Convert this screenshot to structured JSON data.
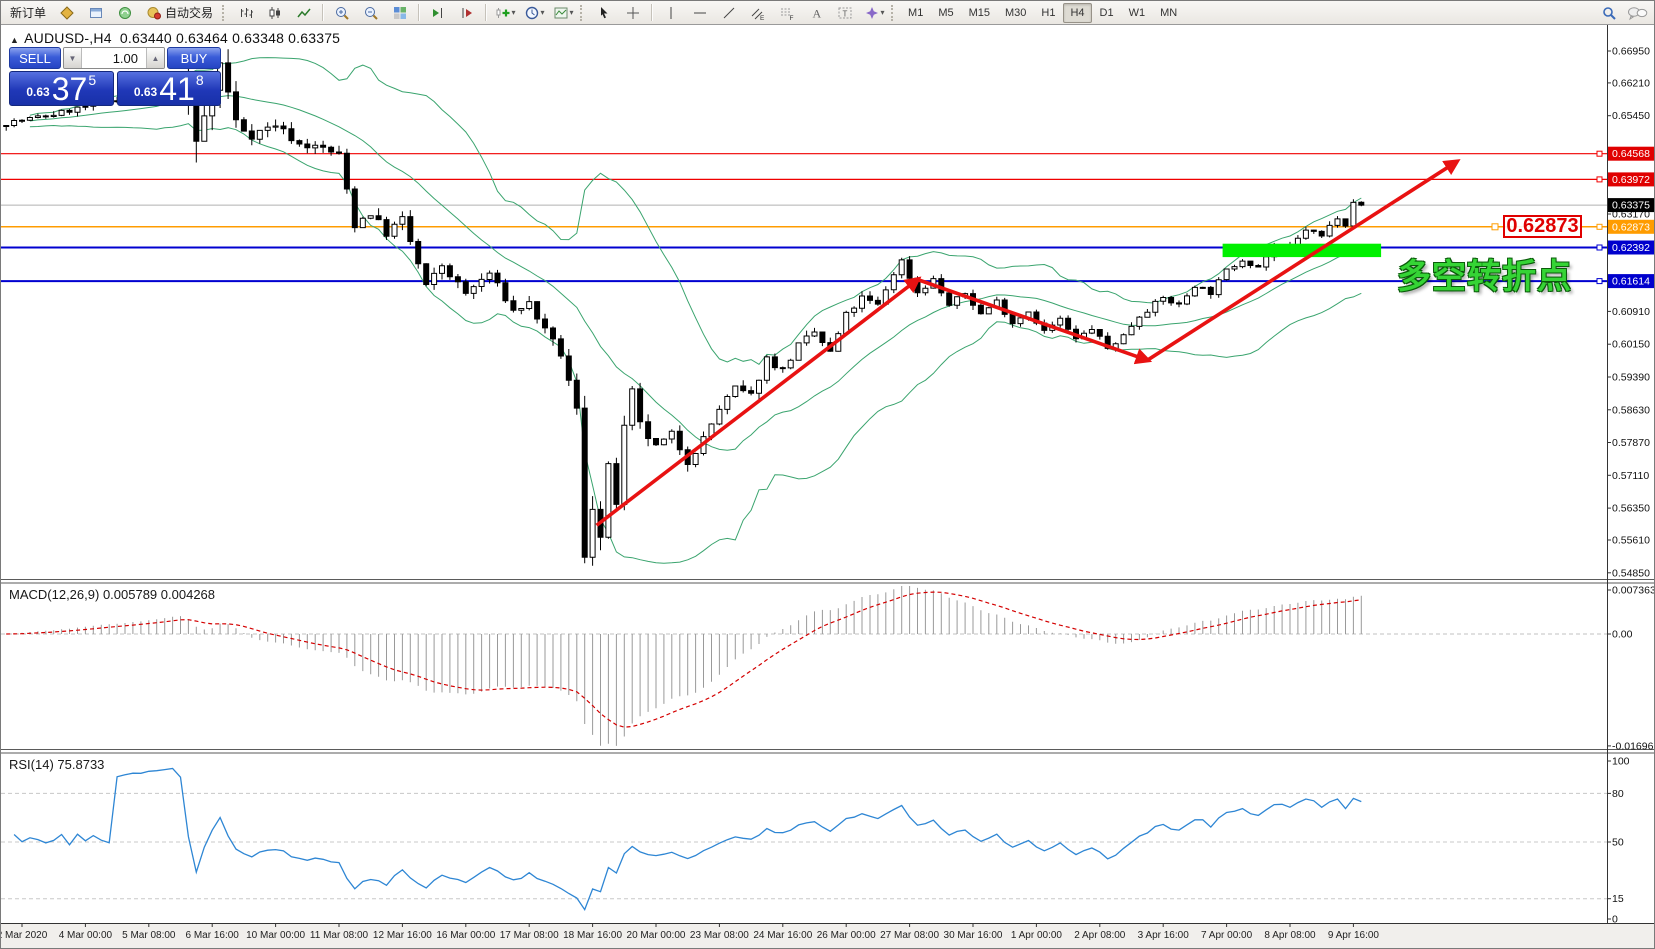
{
  "colors": {
    "accent_blue": "#2545c4",
    "badge_red": "#e00000",
    "badge_black": "#000000",
    "badge_orange": "#ff9c00",
    "badge_blue": "#0000cd",
    "bollinger": "#3aa46e",
    "rsi_line": "#2e86d4",
    "macd_histogram": "#9a9a9a",
    "macd_signal": "#d40000",
    "arrow_red": "#e81212",
    "green_zone": "#00f000",
    "cn_text": "#35d435",
    "up_candle": "#ffffff",
    "down_candle": "#000000"
  },
  "toolbar": {
    "groups": [
      {
        "name": "trade",
        "grip": false,
        "items": [
          {
            "name": "new-order-button",
            "label": "新订单"
          },
          {
            "name": "market-watch-button",
            "icon": "market-watch"
          },
          {
            "name": "data-window-button",
            "icon": "data-window"
          },
          {
            "name": "navigator-button",
            "icon": "navigator"
          },
          {
            "name": "auto-trading-button",
            "label": "自动交易",
            "icon": "auto-trading"
          }
        ]
      },
      {
        "name": "chart-type",
        "grip": true,
        "items": [
          {
            "name": "bar-chart-button",
            "icon": "bar-chart"
          },
          {
            "name": "candlestick-chart-button",
            "icon": "candlestick-chart"
          },
          {
            "name": "line-chart-button",
            "icon": "line-chart"
          }
        ]
      },
      {
        "name": "zoom",
        "grip": false,
        "items": [
          {
            "name": "zoom-in-button",
            "icon": "zoom-in"
          },
          {
            "name": "zoom-out-button",
            "icon": "zoom-out"
          },
          {
            "name": "tile-windows-button",
            "icon": "tile-windows"
          }
        ]
      },
      {
        "name": "scroll",
        "grip": false,
        "items": [
          {
            "name": "auto-scroll-button",
            "icon": "auto-scroll"
          },
          {
            "name": "chart-shift-button",
            "icon": "chart-shift"
          }
        ]
      },
      {
        "name": "insert",
        "grip": false,
        "items": [
          {
            "name": "indicators-button",
            "icon": "indicators",
            "dropdown": true
          },
          {
            "name": "periods-button",
            "icon": "periods",
            "dropdown": true
          },
          {
            "name": "templates-button",
            "icon": "templates",
            "dropdown": true
          }
        ]
      },
      {
        "name": "cursor",
        "grip": true,
        "items": [
          {
            "name": "cursor-button",
            "icon": "cursor"
          },
          {
            "name": "crosshair-button",
            "icon": "crosshair"
          }
        ]
      },
      {
        "name": "objects",
        "grip": false,
        "items": [
          {
            "name": "vertical-line-button",
            "icon": "vertical-line"
          },
          {
            "name": "horizontal-line-button",
            "icon": "horizontal-line"
          },
          {
            "name": "trendline-button",
            "icon": "trendline"
          },
          {
            "name": "equidistant-channel-button",
            "icon": "equidistant-channel"
          },
          {
            "name": "fibonacci-button",
            "icon": "fibonacci"
          },
          {
            "name": "text-button",
            "icon": "text"
          },
          {
            "name": "text-label-button",
            "icon": "text-label"
          },
          {
            "name": "arrows-button",
            "icon": "arrows",
            "dropdown": true
          }
        ]
      },
      {
        "name": "timeframes",
        "grip": true,
        "items": [
          {
            "name": "timeframe-m1-button",
            "tf": "M1"
          },
          {
            "name": "timeframe-m5-button",
            "tf": "M5"
          },
          {
            "name": "timeframe-m15-button",
            "tf": "M15"
          },
          {
            "name": "timeframe-m30-button",
            "tf": "M30"
          },
          {
            "name": "timeframe-h1-button",
            "tf": "H1"
          },
          {
            "name": "timeframe-h4-button",
            "tf": "H4",
            "active": true
          },
          {
            "name": "timeframe-d1-button",
            "tf": "D1"
          },
          {
            "name": "timeframe-w1-button",
            "tf": "W1"
          },
          {
            "name": "timeframe-mn-button",
            "tf": "MN"
          }
        ]
      }
    ],
    "right_items": [
      {
        "name": "search-button",
        "icon": "search"
      },
      {
        "name": "chat-button",
        "icon": "chat"
      }
    ],
    "active_timeframe": "H4"
  },
  "chart": {
    "title": {
      "collapse_arrow": "▲",
      "symbol_period": "AUDUSD-,H4",
      "ohlc": "0.63440 0.63464 0.63348 0.63375"
    },
    "trade_panel": {
      "sell_label": "SELL",
      "buy_label": "BUY",
      "volume": "1.00",
      "spin_down": "▼",
      "spin_up": "▲",
      "sell_price_prefix": "0.63",
      "sell_price_main": "37",
      "sell_price_sup": "5",
      "buy_price_prefix": "0.63",
      "buy_price_main": "41",
      "buy_price_sup": "8"
    },
    "annotations": {
      "price_box_text": "0.62873",
      "turning_point_label": "多空转折点"
    }
  },
  "macd": {
    "label": "MACD(12,26,9)",
    "main": "0.005789",
    "signal": "0.004268",
    "axis_labels": [
      "0.007363",
      "0.00",
      "-0.01696"
    ]
  },
  "rsi": {
    "label": "RSI(14)",
    "value": "75.8733",
    "axis_labels": [
      "100",
      "80",
      "50",
      "15",
      "0"
    ]
  },
  "chart_data": {
    "type": "candlestick",
    "symbol": "AUDUSD-",
    "timeframe": "H4",
    "bars": 172,
    "last_candle": {
      "open": 0.6344,
      "high": 0.63464,
      "low": 0.63348,
      "close": 0.63375
    },
    "forced_extremes": {
      "low_bar": 73,
      "low": 0.5507,
      "high_bar": 27,
      "high": 0.6682
    },
    "price_path_anchors": [
      [
        0,
        0.6528,
        0.0012
      ],
      [
        6,
        0.6548,
        0.0012
      ],
      [
        12,
        0.6575,
        0.0013
      ],
      [
        18,
        0.6605,
        0.0015
      ],
      [
        22,
        0.664,
        0.002
      ],
      [
        24,
        0.648,
        0.006
      ],
      [
        27,
        0.6665,
        0.005
      ],
      [
        29,
        0.653,
        0.004
      ],
      [
        31,
        0.65,
        0.002
      ],
      [
        34,
        0.6525,
        0.0018
      ],
      [
        37,
        0.6478,
        0.0018
      ],
      [
        40,
        0.647,
        0.0016
      ],
      [
        42,
        0.6452,
        0.002
      ],
      [
        44,
        0.6295,
        0.003
      ],
      [
        46,
        0.632,
        0.0022
      ],
      [
        48,
        0.6272,
        0.002
      ],
      [
        50,
        0.6305,
        0.002
      ],
      [
        52,
        0.62,
        0.0025
      ],
      [
        53,
        0.6148,
        0.002
      ],
      [
        55,
        0.6198,
        0.0018
      ],
      [
        58,
        0.6132,
        0.0018
      ],
      [
        61,
        0.618,
        0.0016
      ],
      [
        64,
        0.6092,
        0.0016
      ],
      [
        66,
        0.611,
        0.0016
      ],
      [
        68,
        0.6045,
        0.0018
      ],
      [
        70,
        0.5992,
        0.002
      ],
      [
        72,
        0.586,
        0.003
      ],
      [
        73,
        0.553,
        0.004
      ],
      [
        74,
        0.565,
        0.005
      ],
      [
        75,
        0.5565,
        0.004
      ],
      [
        76,
        0.572,
        0.004
      ],
      [
        77,
        0.565,
        0.003
      ],
      [
        78,
        0.5815,
        0.003
      ],
      [
        79,
        0.59,
        0.0028
      ],
      [
        80,
        0.5825,
        0.0024
      ],
      [
        82,
        0.5775,
        0.002
      ],
      [
        84,
        0.5805,
        0.002
      ],
      [
        86,
        0.5745,
        0.002
      ],
      [
        88,
        0.5795,
        0.002
      ],
      [
        90,
        0.5865,
        0.002
      ],
      [
        92,
        0.5912,
        0.0018
      ],
      [
        94,
        0.5895,
        0.0018
      ],
      [
        96,
        0.5982,
        0.0018
      ],
      [
        98,
        0.5955,
        0.0018
      ],
      [
        100,
        0.6012,
        0.0016
      ],
      [
        102,
        0.6042,
        0.0016
      ],
      [
        104,
        0.5995,
        0.0016
      ],
      [
        106,
        0.6082,
        0.0016
      ],
      [
        108,
        0.6122,
        0.0015
      ],
      [
        110,
        0.6105,
        0.0015
      ],
      [
        112,
        0.618,
        0.0015
      ],
      [
        113,
        0.6208,
        0.0014
      ],
      [
        115,
        0.6135,
        0.0014
      ],
      [
        117,
        0.6165,
        0.0013
      ],
      [
        119,
        0.6105,
        0.0013
      ],
      [
        121,
        0.6133,
        0.0013
      ],
      [
        123,
        0.6085,
        0.0013
      ],
      [
        125,
        0.6115,
        0.0012
      ],
      [
        127,
        0.6065,
        0.0012
      ],
      [
        129,
        0.6092,
        0.0012
      ],
      [
        131,
        0.6045,
        0.0012
      ],
      [
        133,
        0.6072,
        0.0012
      ],
      [
        135,
        0.6025,
        0.0012
      ],
      [
        137,
        0.6052,
        0.0012
      ],
      [
        139,
        0.6005,
        0.0013
      ],
      [
        141,
        0.6035,
        0.0012
      ],
      [
        143,
        0.6082,
        0.0012
      ],
      [
        146,
        0.6122,
        0.0012
      ],
      [
        148,
        0.6105,
        0.0012
      ],
      [
        150,
        0.6152,
        0.0012
      ],
      [
        152,
        0.6135,
        0.0012
      ],
      [
        154,
        0.6185,
        0.0012
      ],
      [
        156,
        0.6212,
        0.0012
      ],
      [
        158,
        0.6195,
        0.0012
      ],
      [
        160,
        0.6242,
        0.0012
      ],
      [
        162,
        0.6235,
        0.0012
      ],
      [
        164,
        0.6282,
        0.0012
      ],
      [
        166,
        0.6265,
        0.0012
      ],
      [
        168,
        0.6312,
        0.0013
      ],
      [
        169,
        0.6295,
        0.0013
      ],
      [
        170,
        0.6348,
        0.0013
      ],
      [
        171,
        0.63375,
        0.0005
      ]
    ],
    "overlays": {
      "bollinger_period": 20,
      "bollinger_deviation": 2
    },
    "horizontal_lines": [
      {
        "price": 0.64568,
        "color": "#f00000",
        "width": 1.2
      },
      {
        "price": 0.63972,
        "color": "#f00000",
        "width": 1.2
      },
      {
        "price": 0.62873,
        "color": "#ff9c00",
        "width": 1.5
      },
      {
        "price": 0.62392,
        "color": "#0000d0",
        "width": 2
      },
      {
        "price": 0.61614,
        "color": "#0000d0",
        "width": 2
      }
    ],
    "current_price_line": {
      "price": 0.63375,
      "color": "#b0b0b0"
    },
    "price_axis": {
      "plain_ticks": [
        "0.66950",
        "0.66210",
        "0.65450",
        "0.63170",
        "0.60910",
        "0.60150",
        "0.59390",
        "0.58630",
        "0.57870",
        "0.57110",
        "0.56350",
        "0.55610",
        "0.54850"
      ],
      "badges": [
        {
          "text": "0.64568",
          "value": 0.64568,
          "bg": "#e00000",
          "fg": "#ffffff"
        },
        {
          "text": "0.63972",
          "value": 0.63972,
          "bg": "#e00000",
          "fg": "#ffffff"
        },
        {
          "text": "0.63375",
          "value": 0.63375,
          "bg": "#000000",
          "fg": "#ffffff"
        },
        {
          "text": "0.62873",
          "value": 0.62873,
          "bg": "#ff9c00",
          "fg": "#ffffff"
        },
        {
          "text": "0.62392",
          "value": 0.62392,
          "bg": "#0000cd",
          "fg": "#ffffff"
        },
        {
          "text": "0.61614",
          "value": 0.61614,
          "bg": "#0000cd",
          "fg": "#ffffff"
        }
      ]
    },
    "x_axis_labels": [
      "2 Mar 2020",
      "4 Mar 00:00",
      "5 Mar 08:00",
      "6 Mar 16:00",
      "10 Mar 00:00",
      "11 Mar 08:00",
      "12 Mar 16:00",
      "16 Mar 00:00",
      "17 Mar 08:00",
      "18 Mar 16:00",
      "20 Mar 00:00",
      "23 Mar 08:00",
      "24 Mar 16:00",
      "26 Mar 00:00",
      "27 Mar 08:00",
      "30 Mar 16:00",
      "1 Apr 00:00",
      "2 Apr 08:00",
      "3 Apr 16:00",
      "7 Apr 00:00",
      "8 Apr 08:00",
      "9 Apr 16:00"
    ],
    "trend_arrows": [
      {
        "from_bar": 74.5,
        "from_price": 0.5595,
        "to_bar": 115,
        "to_price": 0.6165
      },
      {
        "from_bar": 115,
        "from_price": 0.6165,
        "to_bar": 144,
        "to_price": 0.5978
      },
      {
        "from_bar": 144,
        "from_price": 0.5978,
        "to_bar": 183,
        "to_price": 0.6438
      }
    ],
    "green_zone": {
      "from_bar": 153.5,
      "to_bar": 173.5,
      "top_price": 0.6248,
      "bottom_price": 0.6217
    },
    "indicators": {
      "macd": {
        "params": [
          12,
          26,
          9
        ],
        "current_main": 0.005789,
        "current_signal": 0.004268,
        "axis_max": 0.007363,
        "axis_min": -0.01696
      },
      "rsi": {
        "period": 14,
        "current": 75.8733,
        "levels": [
          80,
          50,
          15
        ],
        "axis": [
          100,
          80,
          50,
          15,
          0
        ]
      }
    }
  }
}
